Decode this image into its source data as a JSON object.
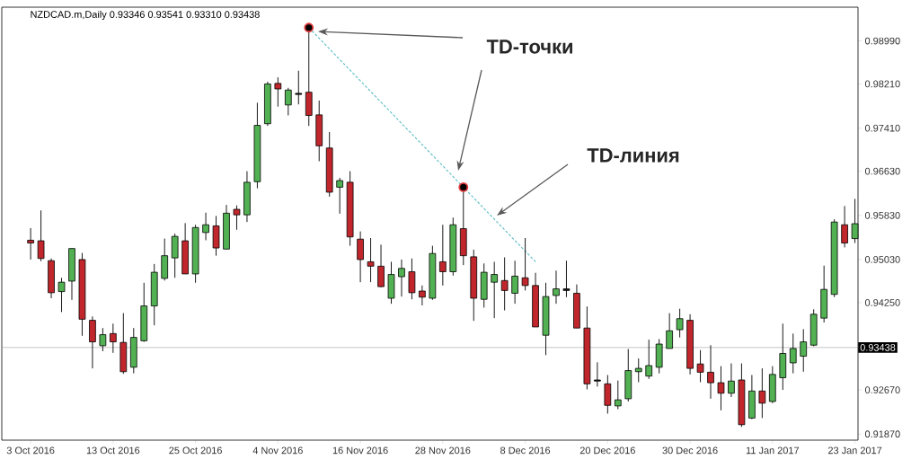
{
  "chart_data": {
    "type": "candlestick",
    "title": "NZDCAD.m,Daily 0.93346 0.93541 0.93310 0.93438",
    "categories": [
      "3 Oct 2016",
      null,
      null,
      null,
      null,
      null,
      null,
      null,
      "13 Oct 2016",
      null,
      null,
      null,
      null,
      null,
      null,
      null,
      "25 Oct 2016",
      null,
      null,
      null,
      null,
      null,
      null,
      null,
      "4 Nov 2016",
      null,
      null,
      null,
      null,
      null,
      null,
      null,
      "16 Nov 2016",
      null,
      null,
      null,
      null,
      null,
      null,
      null,
      "28 Nov 2016",
      null,
      null,
      null,
      null,
      null,
      null,
      null,
      "8 Dec 2016",
      null,
      null,
      null,
      null,
      null,
      null,
      null,
      "20 Dec 2016",
      null,
      null,
      null,
      null,
      null,
      null,
      null,
      "30 Dec 2016",
      null,
      null,
      null,
      null,
      null,
      null,
      null,
      "11 Jan 2017",
      null,
      null,
      null,
      null,
      null,
      null,
      null,
      "23 Jan 2017"
    ],
    "ohlc": [
      [
        0.9538,
        0.956,
        0.9503,
        0.9533
      ],
      [
        0.9537,
        0.9592,
        0.95,
        0.9505
      ],
      [
        0.9501,
        0.9505,
        0.9433,
        0.9443
      ],
      [
        0.9445,
        0.947,
        0.9408,
        0.9462
      ],
      [
        0.9464,
        0.9523,
        0.943,
        0.9523
      ],
      [
        0.9503,
        0.9515,
        0.9365,
        0.9395
      ],
      [
        0.9393,
        0.94,
        0.9306,
        0.9354
      ],
      [
        0.9347,
        0.9379,
        0.9337,
        0.9367
      ],
      [
        0.9369,
        0.9387,
        0.9334,
        0.9354
      ],
      [
        0.9353,
        0.9406,
        0.9296,
        0.93
      ],
      [
        0.9308,
        0.9379,
        0.9297,
        0.9362
      ],
      [
        0.9356,
        0.9461,
        0.9354,
        0.9419
      ],
      [
        0.9419,
        0.9495,
        0.9384,
        0.948
      ],
      [
        0.9469,
        0.9541,
        0.9465,
        0.951
      ],
      [
        0.9506,
        0.955,
        0.947,
        0.9545
      ],
      [
        0.9537,
        0.9569,
        0.9477,
        0.9477
      ],
      [
        0.9477,
        0.9566,
        0.9461,
        0.9561
      ],
      [
        0.9552,
        0.9588,
        0.9538,
        0.9566
      ],
      [
        0.9564,
        0.9582,
        0.951,
        0.9524
      ],
      [
        0.9522,
        0.9602,
        0.9522,
        0.9587
      ],
      [
        0.9594,
        0.9601,
        0.9557,
        0.9584
      ],
      [
        0.9584,
        0.9663,
        0.9571,
        0.9643
      ],
      [
        0.9644,
        0.9787,
        0.9632,
        0.9746
      ],
      [
        0.9749,
        0.9825,
        0.9745,
        0.9821
      ],
      [
        0.9822,
        0.9833,
        0.978,
        0.9812
      ],
      [
        0.9783,
        0.9814,
        0.9764,
        0.981
      ],
      [
        0.9804,
        0.9845,
        0.9784,
        0.9802
      ],
      [
        0.9806,
        0.9923,
        0.9745,
        0.9764
      ],
      [
        0.9765,
        0.9791,
        0.9681,
        0.9709
      ],
      [
        0.9705,
        0.9734,
        0.9617,
        0.9625
      ],
      [
        0.9634,
        0.9651,
        0.9586,
        0.9646
      ],
      [
        0.9643,
        0.9663,
        0.9528,
        0.9544
      ],
      [
        0.954,
        0.9554,
        0.9462,
        0.9503
      ],
      [
        0.9499,
        0.9542,
        0.9462,
        0.9491
      ],
      [
        0.9491,
        0.953,
        0.9453,
        0.9454
      ],
      [
        0.9433,
        0.9499,
        0.9423,
        0.9476
      ],
      [
        0.9472,
        0.9503,
        0.9436,
        0.9487
      ],
      [
        0.9481,
        0.9505,
        0.9431,
        0.9443
      ],
      [
        0.9446,
        0.9456,
        0.942,
        0.9435
      ],
      [
        0.9433,
        0.9528,
        0.943,
        0.9514
      ],
      [
        0.9499,
        0.9566,
        0.9456,
        0.9481
      ],
      [
        0.9481,
        0.9579,
        0.9474,
        0.9566
      ],
      [
        0.9559,
        0.9634,
        0.9493,
        0.951
      ],
      [
        0.9508,
        0.9521,
        0.9392,
        0.9433
      ],
      [
        0.9431,
        0.9496,
        0.9416,
        0.948
      ],
      [
        0.9462,
        0.9499,
        0.9397,
        0.9476
      ],
      [
        0.9465,
        0.9507,
        0.9411,
        0.9447
      ],
      [
        0.9442,
        0.9501,
        0.9423,
        0.9473
      ],
      [
        0.947,
        0.9542,
        0.9447,
        0.9456
      ],
      [
        0.9456,
        0.9479,
        0.9381,
        0.9381
      ],
      [
        0.9366,
        0.9461,
        0.933,
        0.9436
      ],
      [
        0.9438,
        0.9483,
        0.9423,
        0.945
      ],
      [
        0.945,
        0.9501,
        0.9435,
        0.9447
      ],
      [
        0.9442,
        0.9458,
        0.9379,
        0.9379
      ],
      [
        0.9379,
        0.9418,
        0.9268,
        0.9278
      ],
      [
        0.9285,
        0.9317,
        0.9273,
        0.9283
      ],
      [
        0.9278,
        0.9294,
        0.9224,
        0.9239
      ],
      [
        0.9238,
        0.9284,
        0.9232,
        0.9249
      ],
      [
        0.9251,
        0.9341,
        0.9246,
        0.9302
      ],
      [
        0.93,
        0.9324,
        0.9281,
        0.9306
      ],
      [
        0.9292,
        0.9358,
        0.9287,
        0.9311
      ],
      [
        0.9308,
        0.9359,
        0.9297,
        0.935
      ],
      [
        0.9342,
        0.9406,
        0.9342,
        0.9374
      ],
      [
        0.9376,
        0.9414,
        0.9362,
        0.9396
      ],
      [
        0.9393,
        0.9404,
        0.9295,
        0.9306
      ],
      [
        0.9314,
        0.9339,
        0.9281,
        0.9299
      ],
      [
        0.9299,
        0.9348,
        0.9251,
        0.928
      ],
      [
        0.928,
        0.931,
        0.923,
        0.9261
      ],
      [
        0.9261,
        0.9315,
        0.9254,
        0.9283
      ],
      [
        0.9285,
        0.9315,
        0.92,
        0.9204
      ],
      [
        0.9216,
        0.9294,
        0.9214,
        0.9265
      ],
      [
        0.9265,
        0.9306,
        0.9216,
        0.9243
      ],
      [
        0.9246,
        0.931,
        0.9243,
        0.9295
      ],
      [
        0.9289,
        0.9387,
        0.9267,
        0.9333
      ],
      [
        0.9316,
        0.9369,
        0.9297,
        0.9342
      ],
      [
        0.9328,
        0.9377,
        0.93,
        0.9354
      ],
      [
        0.9348,
        0.9413,
        0.9346,
        0.9404
      ],
      [
        0.9397,
        0.9492,
        0.9389,
        0.9449
      ],
      [
        0.944,
        0.9576,
        0.9435,
        0.9571
      ],
      [
        0.9566,
        0.96,
        0.9525,
        0.9533
      ],
      [
        0.9541,
        0.9613,
        0.9533,
        0.9568
      ]
    ],
    "colors": [
      "#c0262b",
      "#c0262b",
      "#c0262b",
      "#52b152",
      "#52b152",
      "#c0262b",
      "#c0262b",
      "#52b152",
      "#c0262b",
      "#c0262b",
      "#52b152",
      "#52b152",
      "#52b152",
      "#52b152",
      "#52b152",
      "#c0262b",
      "#52b152",
      "#52b152",
      "#c0262b",
      "#52b152",
      "#c0262b",
      "#52b152",
      "#52b152",
      "#52b152",
      "#c0262b",
      "#52b152",
      "#202020",
      "#c0262b",
      "#c0262b",
      "#c0262b",
      "#52b152",
      "#c0262b",
      "#c0262b",
      "#c0262b",
      "#c0262b",
      "#52b152",
      "#52b152",
      "#c0262b",
      "#c0262b",
      "#52b152",
      "#c0262b",
      "#52b152",
      "#c0262b",
      "#c0262b",
      "#52b152",
      "#52b152",
      "#c0262b",
      "#52b152",
      "#c0262b",
      "#c0262b",
      "#52b152",
      "#52b152",
      "#202020",
      "#c0262b",
      "#c0262b",
      "#202020",
      "#c0262b",
      "#52b152",
      "#52b152",
      "#52b152",
      "#52b152",
      "#52b152",
      "#52b152",
      "#52b152",
      "#c0262b",
      "#c0262b",
      "#c0262b",
      "#c0262b",
      "#52b152",
      "#c0262b",
      "#52b152",
      "#c0262b",
      "#52b152",
      "#52b152",
      "#52b152",
      "#52b152",
      "#52b152",
      "#52b152",
      "#52b152",
      "#c0262b",
      "#52b152"
    ],
    "series": [
      {
        "type": "line",
        "color": "#5bbcc4",
        "line_style": "dashed",
        "values": [
          null,
          null,
          null,
          null,
          null,
          null,
          null,
          null,
          null,
          null,
          null,
          null,
          null,
          null,
          null,
          null,
          null,
          null,
          null,
          null,
          null,
          null,
          null,
          null,
          null,
          null,
          null,
          0.9923,
          null,
          null,
          null,
          null,
          null,
          null,
          null,
          null,
          null,
          null,
          null,
          null,
          null,
          null,
          0.9634,
          null,
          null,
          null,
          null,
          null,
          null,
          0.9499,
          null,
          null,
          null,
          null,
          null,
          null,
          null,
          null,
          null,
          null,
          null,
          null,
          null,
          null,
          null,
          null,
          null,
          null,
          null,
          null,
          null,
          null,
          null,
          null,
          null,
          null,
          null,
          null,
          null,
          null,
          null
        ]
      },
      {
        "type": "scatter",
        "color": "#e03c3c",
        "marker": "circle",
        "values": [
          null,
          null,
          null,
          null,
          null,
          null,
          null,
          null,
          null,
          null,
          null,
          null,
          null,
          null,
          null,
          null,
          null,
          null,
          null,
          null,
          null,
          null,
          null,
          null,
          null,
          null,
          null,
          0.9923,
          null,
          null,
          null,
          null,
          null,
          null,
          null,
          null,
          null,
          null,
          null,
          null,
          null,
          null,
          0.9634,
          null,
          null,
          null,
          null,
          null,
          null,
          null,
          null,
          null,
          null,
          null,
          null,
          null,
          null,
          null,
          null,
          null,
          null,
          null,
          null,
          null,
          null,
          null,
          null,
          null,
          null,
          null,
          null,
          null,
          null,
          null,
          null,
          null,
          null,
          null,
          null,
          null,
          null
        ]
      }
    ],
    "ylim": [
      0.9176,
      0.996
    ],
    "yticks": [
      {
        "value": 0.9899,
        "label": "0.98990"
      },
      {
        "value": 0.9821,
        "label": "0.98210"
      },
      {
        "value": 0.9741,
        "label": "0.97410"
      },
      {
        "value": 0.9663,
        "label": "0.96630"
      },
      {
        "value": 0.9583,
        "label": "0.95830"
      },
      {
        "value": 0.9503,
        "label": "0.95030"
      },
      {
        "value": 0.9425,
        "label": "0.94250"
      },
      {
        "value": 0.9267,
        "label": "0.92670"
      },
      {
        "value": 0.9187,
        "label": "0.91870"
      }
    ],
    "ref_lines": [
      {
        "axis": "y",
        "value": 0.93438,
        "label": "0.93438",
        "color": "#a0a0a0"
      }
    ],
    "annotations": [
      "TD-точки",
      "TD-линия"
    ],
    "grid": false
  }
}
